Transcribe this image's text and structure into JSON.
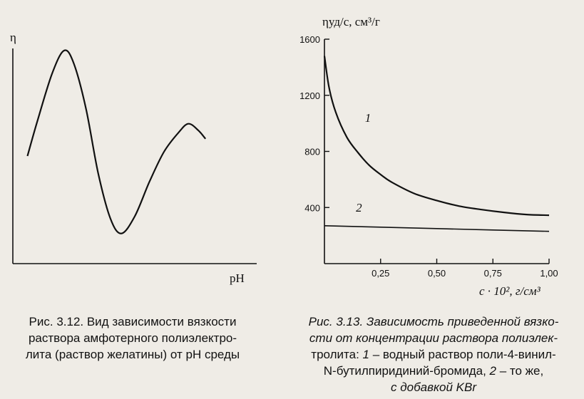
{
  "figure_left": {
    "y_axis_label": "η",
    "x_axis_label": "pH",
    "caption_lines": [
      "Рис. 3.12. Вид зависимости вязкости",
      "раствора амфотерного полиэлектро-",
      "лита (раствор желатины) от pH среды"
    ]
  },
  "figure_right": {
    "y_axis_label": "ηуд/c, см³/г",
    "x_axis_label": "c · 10², г/см³",
    "caption_lines": [
      [
        "",
        "Рис. 3.13. Зависимость приведенной вязко-",
        ""
      ],
      [
        "",
        "сти от концентрации раствора полиэлек-",
        ""
      ],
      [
        "тролита: ",
        "1",
        " – водный раствор поли-4-винил-"
      ],
      [
        "N-бутилпиридиний-бромида, ",
        "2",
        " – то же,"
      ],
      [
        "",
        "с добавкой KBr",
        ""
      ]
    ]
  },
  "chart_data": [
    {
      "type": "line",
      "title": "",
      "xlabel": "pH",
      "ylabel": "η",
      "x_ticks": [],
      "y_ticks": [],
      "series": [
        {
          "name": "",
          "shape": "relative",
          "points": [
            [
              0.06,
              0.5
            ],
            [
              0.1,
              0.66
            ],
            [
              0.16,
              0.88
            ],
            [
              0.21,
              0.99
            ],
            [
              0.25,
              0.93
            ],
            [
              0.3,
              0.72
            ],
            [
              0.35,
              0.42
            ],
            [
              0.4,
              0.21
            ],
            [
              0.445,
              0.14
            ],
            [
              0.5,
              0.22
            ],
            [
              0.56,
              0.38
            ],
            [
              0.62,
              0.52
            ],
            [
              0.68,
              0.61
            ],
            [
              0.72,
              0.65
            ],
            [
              0.76,
              0.62
            ],
            [
              0.79,
              0.58
            ]
          ]
        }
      ]
    },
    {
      "type": "line",
      "title": "",
      "xlabel": "c · 10², г/см³",
      "ylabel": "ηуд/c, см³/г",
      "xlim": [
        0,
        1.0
      ],
      "ylim": [
        0,
        1600
      ],
      "x_ticks": [
        "0,25",
        "0,50",
        "0,75",
        "1,00"
      ],
      "y_ticks": [
        "400",
        "800",
        "1200",
        "1600"
      ],
      "series": [
        {
          "name": "1",
          "x": [
            0.0,
            0.02,
            0.05,
            0.1,
            0.15,
            0.2,
            0.25,
            0.3,
            0.4,
            0.5,
            0.6,
            0.7,
            0.8,
            0.9,
            1.0
          ],
          "y": [
            1480,
            1260,
            1080,
            900,
            790,
            700,
            635,
            580,
            500,
            450,
            410,
            385,
            365,
            350,
            345
          ]
        },
        {
          "name": "2",
          "x": [
            0.0,
            0.25,
            0.5,
            0.75,
            1.0
          ],
          "y": [
            270,
            260,
            250,
            240,
            230
          ]
        }
      ]
    }
  ]
}
